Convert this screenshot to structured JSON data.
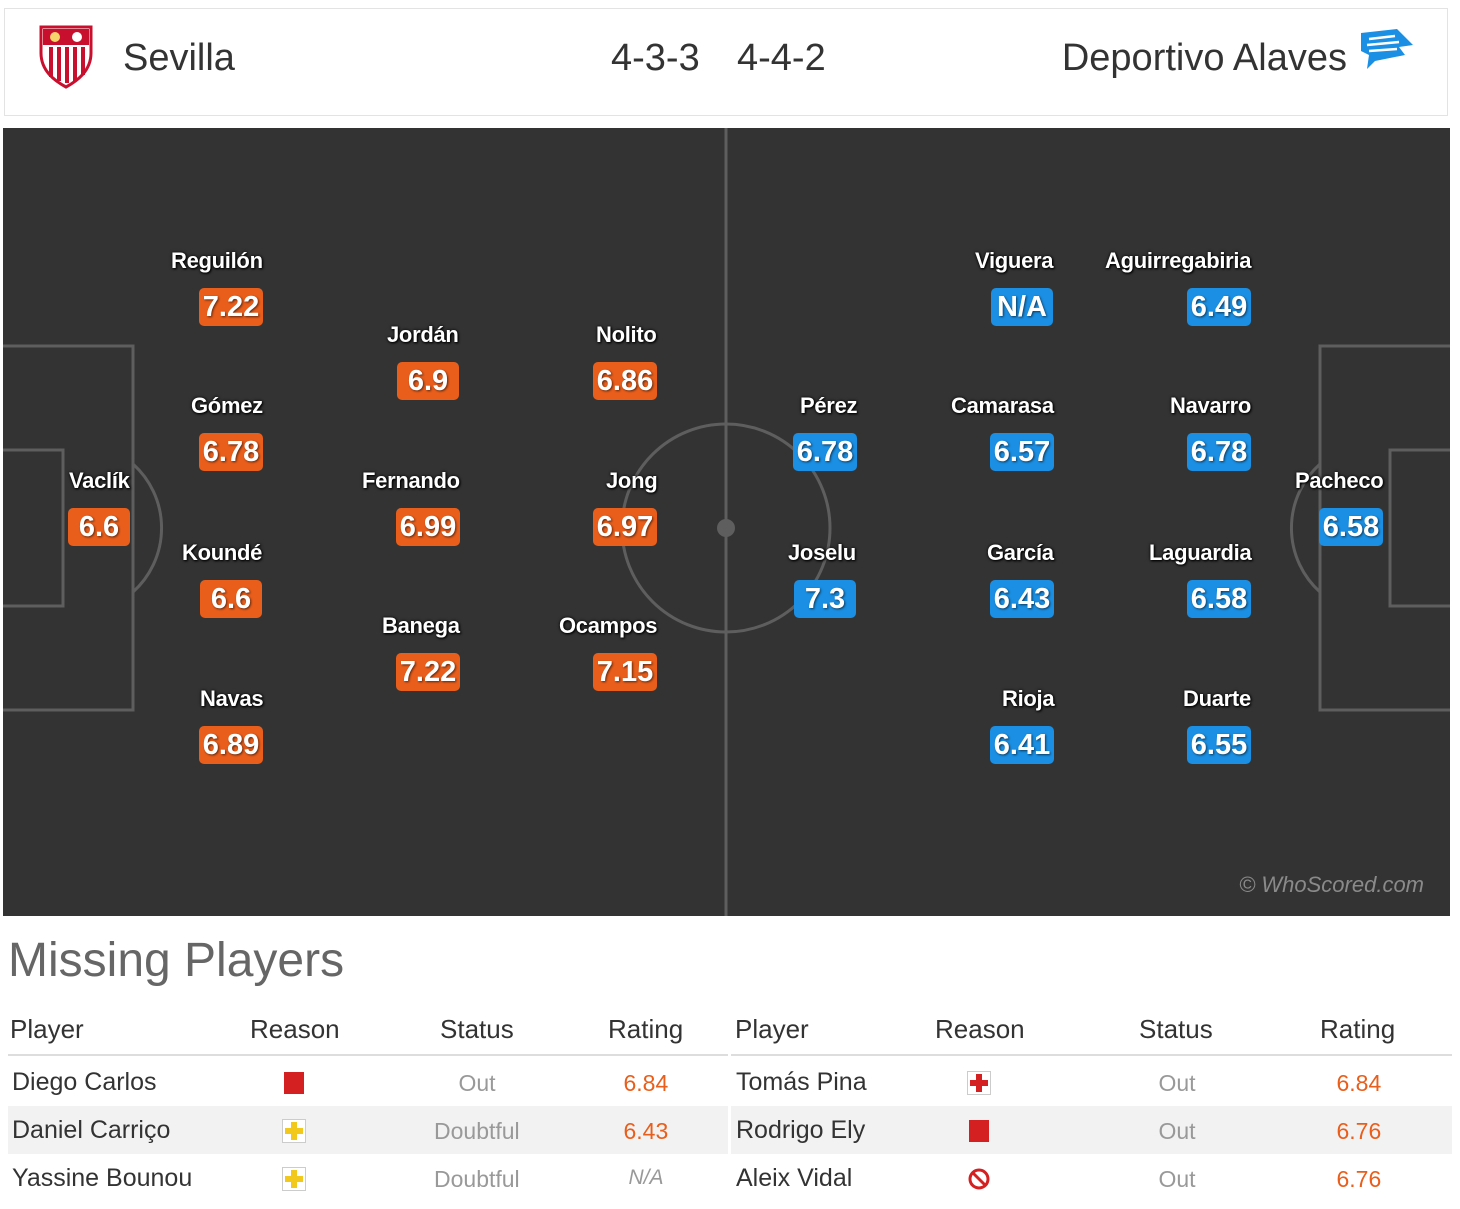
{
  "header": {
    "home_team": "Sevilla",
    "home_formation": "4-3-3",
    "away_formation": "4-4-2",
    "away_team": "Deportivo Alaves"
  },
  "colors": {
    "home": "#e95e1b",
    "away": "#1a8fe3",
    "pitch": "#333333"
  },
  "home_players": [
    {
      "name": "Vaclík",
      "rating": "6.6"
    },
    {
      "name": "Reguilón",
      "rating": "7.22"
    },
    {
      "name": "Gómez",
      "rating": "6.78"
    },
    {
      "name": "Koundé",
      "rating": "6.6"
    },
    {
      "name": "Navas",
      "rating": "6.89"
    },
    {
      "name": "Jordán",
      "rating": "6.9"
    },
    {
      "name": "Fernando",
      "rating": "6.99"
    },
    {
      "name": "Banega",
      "rating": "7.22"
    },
    {
      "name": "Nolito",
      "rating": "6.86"
    },
    {
      "name": "Jong",
      "rating": "6.97"
    },
    {
      "name": "Ocampos",
      "rating": "7.15"
    }
  ],
  "away_players": [
    {
      "name": "Pacheco",
      "rating": "6.58"
    },
    {
      "name": "Aguirregabiria",
      "rating": "6.49"
    },
    {
      "name": "Navarro",
      "rating": "6.78"
    },
    {
      "name": "Laguardia",
      "rating": "6.58"
    },
    {
      "name": "Duarte",
      "rating": "6.55"
    },
    {
      "name": "Viguera",
      "rating": "N/A"
    },
    {
      "name": "Camarasa",
      "rating": "6.57"
    },
    {
      "name": "García",
      "rating": "6.43"
    },
    {
      "name": "Rioja",
      "rating": "6.41"
    },
    {
      "name": "Pérez",
      "rating": "6.78"
    },
    {
      "name": "Joselu",
      "rating": "7.3"
    }
  ],
  "watermark": "© WhoScored.com",
  "missing": {
    "title": "Missing Players",
    "headers": {
      "player": "Player",
      "reason": "Reason",
      "status": "Status",
      "rating": "Rating"
    },
    "home": [
      {
        "player": "Diego Carlos",
        "reason_icon": "red-card-icon",
        "status": "Out",
        "rating": "6.84"
      },
      {
        "player": "Daniel Carriço",
        "reason_icon": "yellow-injury-icon",
        "status": "Doubtful",
        "rating": "6.43"
      },
      {
        "player": "Yassine Bounou",
        "reason_icon": "yellow-injury-icon",
        "status": "Doubtful",
        "rating": "N/A"
      }
    ],
    "away": [
      {
        "player": "Tomás Pina",
        "reason_icon": "red-injury-icon",
        "status": "Out",
        "rating": "6.84"
      },
      {
        "player": "Rodrigo Ely",
        "reason_icon": "red-card-icon",
        "status": "Out",
        "rating": "6.76"
      },
      {
        "player": "Aleix Vidal",
        "reason_icon": "suspended-icon",
        "status": "Out",
        "rating": "6.76"
      }
    ]
  }
}
